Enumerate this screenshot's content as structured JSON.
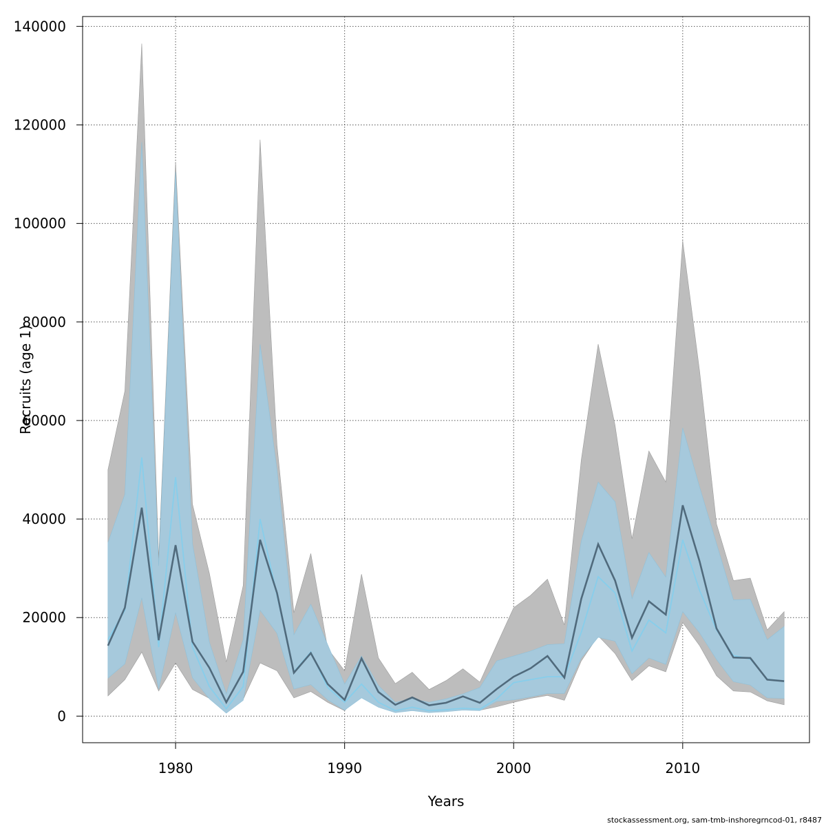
{
  "chart_data": {
    "type": "line",
    "title": "",
    "xlabel": "Years",
    "ylabel": "Recruits (age 1)",
    "xlim": [
      1974.5,
      2017.5
    ],
    "ylim": [
      -5400,
      142000
    ],
    "xticks": [
      1980,
      1990,
      2000,
      2010
    ],
    "yticks": [
      0,
      20000,
      40000,
      60000,
      80000,
      100000,
      120000,
      140000
    ],
    "grid": true,
    "x": [
      1976,
      1977,
      1978,
      1979,
      1980,
      1981,
      1982,
      1983,
      1984,
      1985,
      1986,
      1987,
      1988,
      1989,
      1990,
      1991,
      1992,
      1993,
      1994,
      1995,
      1996,
      1997,
      1998,
      1999,
      2000,
      2001,
      2002,
      2003,
      2004,
      2005,
      2006,
      2007,
      2008,
      2009,
      2010,
      2011,
      2012,
      2013,
      2014,
      2015,
      2016
    ],
    "series": [
      {
        "role": "estimate-outer",
        "color": "#506a7c",
        "values": [
          14300,
          22000,
          42300,
          15400,
          34700,
          15100,
          9800,
          2800,
          9000,
          35800,
          25000,
          8800,
          12800,
          6500,
          3300,
          11700,
          4900,
          2300,
          3800,
          2200,
          2700,
          4000,
          2700,
          5500,
          8000,
          9700,
          12200,
          7800,
          23800,
          34900,
          27500,
          15900,
          23300,
          20600,
          42800,
          31400,
          17800,
          11900,
          11800,
          7400,
          7100
        ],
        "upper": [
          50000,
          66000,
          136500,
          32000,
          112500,
          43000,
          29000,
          11000,
          26500,
          117000,
          55000,
          21000,
          33000,
          13700,
          9200,
          28800,
          11800,
          6600,
          8900,
          5400,
          7200,
          9600,
          6900,
          14500,
          22000,
          24500,
          27800,
          18500,
          52000,
          75500,
          59000,
          36000,
          53800,
          47500,
          96500,
          70000,
          39000,
          27500,
          28000,
          17500,
          21200
        ],
        "lower": [
          4100,
          7400,
          13000,
          5100,
          10800,
          5400,
          3600,
          800,
          3400,
          10800,
          9200,
          3700,
          5000,
          2800,
          1100,
          4700,
          2000,
          900,
          1500,
          800,
          1000,
          1500,
          1200,
          1900,
          2800,
          3600,
          4200,
          3200,
          11200,
          16300,
          12700,
          7200,
          10200,
          9000,
          19000,
          14300,
          8200,
          5100,
          4900,
          3100,
          2300
        ]
      },
      {
        "role": "estimate-inner",
        "color": "#87ceeb",
        "values": [
          15500,
          21500,
          52500,
          14000,
          48500,
          14000,
          6000,
          1500,
          6000,
          40000,
          24500,
          9000,
          13000,
          5800,
          2800,
          6500,
          2800,
          1100,
          1800,
          1100,
          1300,
          1600,
          1400,
          3500,
          6800,
          7400,
          8000,
          8000,
          17000,
          28300,
          25000,
          13200,
          19500,
          16900,
          35800,
          25500,
          17500,
          12300,
          11600,
          7500,
          7100
        ],
        "upper": [
          35200,
          45000,
          116500,
          30500,
          110500,
          35000,
          15000,
          4500,
          15500,
          75500,
          50000,
          16500,
          22700,
          14500,
          6500,
          12200,
          6200,
          2800,
          3500,
          2800,
          3500,
          4500,
          5800,
          11200,
          12200,
          13200,
          14500,
          14700,
          35500,
          47500,
          43500,
          23800,
          33200,
          28200,
          58500,
          46500,
          35000,
          23600,
          23700,
          15500,
          18200
        ]
      }
    ],
    "bands": [
      {
        "name": "outer",
        "color": "#bdbdbd"
      },
      {
        "name": "inner",
        "color": "#a6c9dc"
      }
    ],
    "lower_inner": [
      7700,
      10600,
      24000,
      5500,
      21000,
      7800,
      3500,
      600,
      3200,
      21500,
      16800,
      5500,
      6400,
      3300,
      1200,
      3700,
      1800,
      700,
      1100,
      700,
      900,
      1200,
      1100,
      3000,
      3300,
      3900,
      4600,
      4600,
      11800,
      16000,
      15200,
      8600,
      11800,
      10500,
      21200,
      16900,
      11500,
      7000,
      6300,
      3700,
      3600
    ]
  },
  "footnote": "stockassessment.org, sam-tmb-inshoregrncod-01, r8487"
}
